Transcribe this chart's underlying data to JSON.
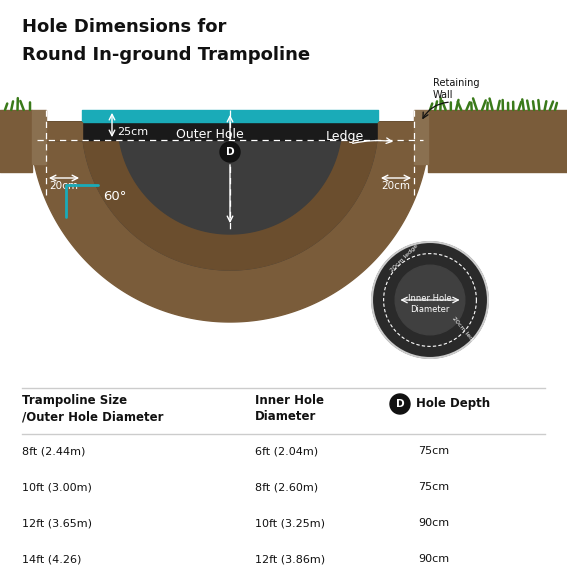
{
  "title_line1": "Hole Dimensions for",
  "title_line2": "Round In-ground Trampoline",
  "bg_color": "#ffffff",
  "soil_color": "#7a5c3a",
  "hole_color": "#404040",
  "teal_color": "#1aabb8",
  "black_strip": "#1a1a1a",
  "grass_color": "#4a8a2a",
  "retaining_wall_color": "#9a8060",
  "dark_circle_color": "#2a2a2a",
  "inner_dark_color": "#3d3d3d",
  "table_headers": [
    "Trampoline Size\n/Outer Hole Diameter",
    "Inner Hole\nDiameter",
    "Hole Depth"
  ],
  "table_rows": [
    [
      "8ft (2.44m)",
      "6ft (2.04m)",
      "75cm"
    ],
    [
      "10ft (3.00m)",
      "8ft (2.60m)",
      "75cm"
    ],
    [
      "12ft (3.65m)",
      "10ft (3.25m)",
      "90cm"
    ],
    [
      "14ft (4.26)",
      "12ft (3.86m)",
      "90cm"
    ]
  ]
}
